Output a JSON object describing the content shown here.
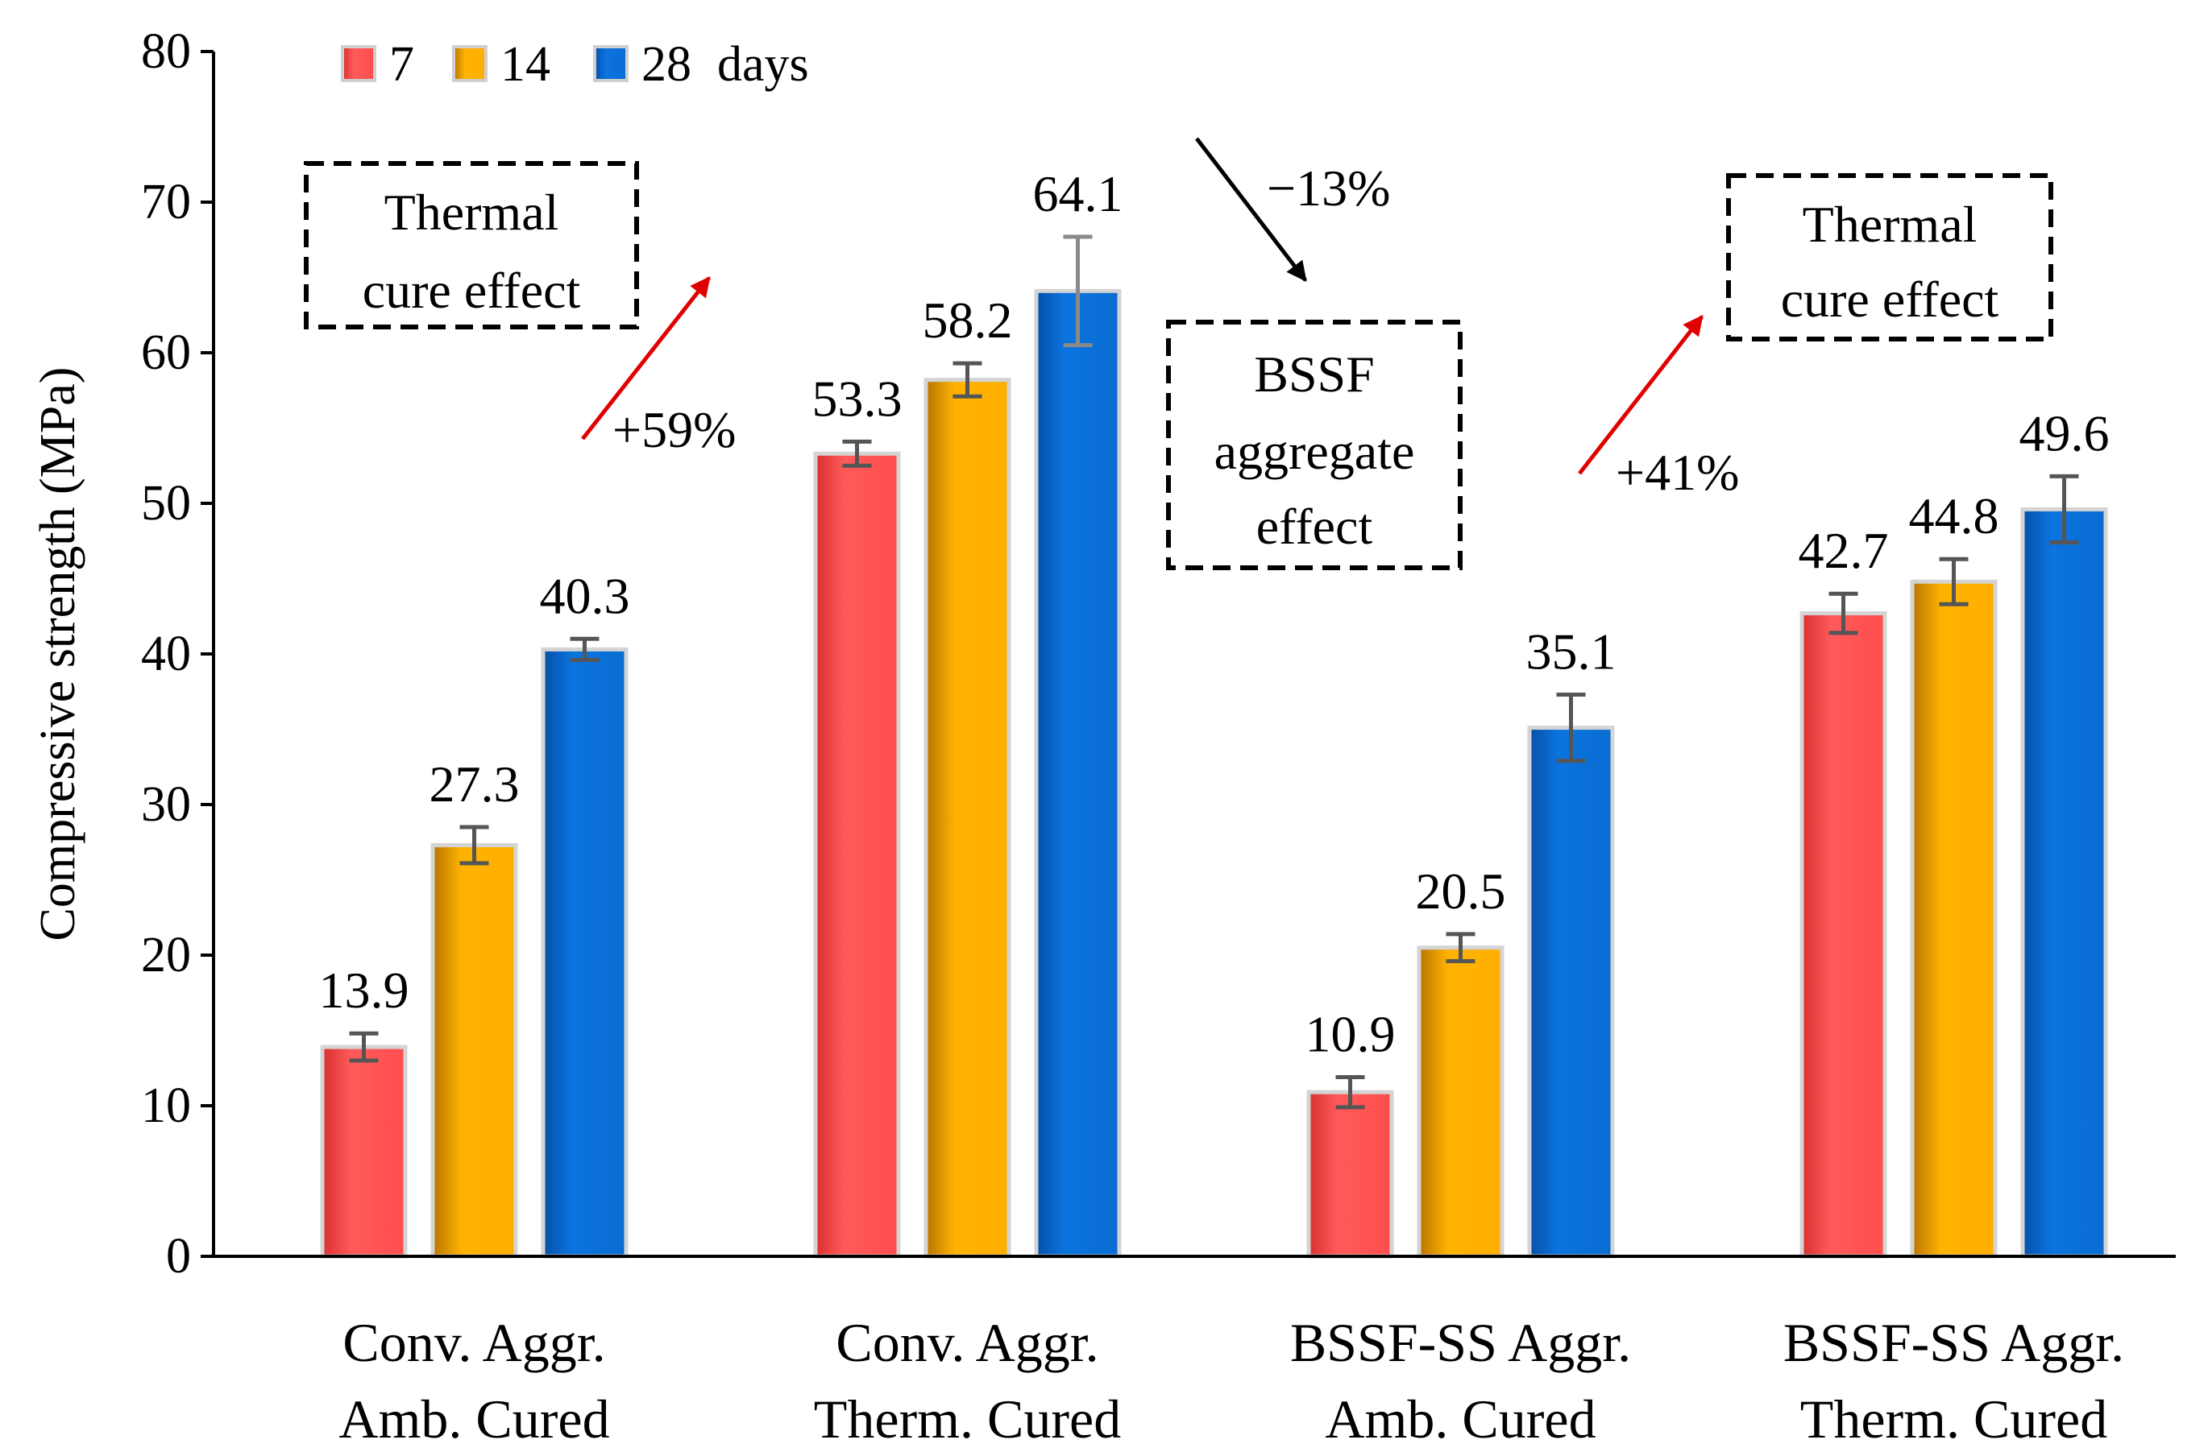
{
  "chart_data": {
    "type": "bar",
    "title": "",
    "xlabel": "",
    "ylabel": "Compressive strength (MPa)",
    "ylim": [
      0,
      80
    ],
    "yticks": [
      0,
      10,
      20,
      30,
      40,
      50,
      60,
      70,
      80
    ],
    "grid": false,
    "legend_position": "top-left",
    "legend_suffix": "days",
    "categories": [
      [
        "Conv. Aggr.",
        "Amb. Cured"
      ],
      [
        "Conv. Aggr.",
        "Therm. Cured"
      ],
      [
        "BSSF-SS Aggr.",
        "Amb. Cured"
      ],
      [
        "BSSF-SS Aggr.",
        "Therm. Cured"
      ]
    ],
    "series": [
      {
        "name": "7",
        "color": "#ff4d4d",
        "values": [
          13.9,
          53.3,
          10.9,
          42.7
        ],
        "errors": [
          0.9,
          0.8,
          1.0,
          1.3
        ]
      },
      {
        "name": "14",
        "color": "#ffb000",
        "values": [
          27.3,
          58.2,
          20.5,
          44.8
        ],
        "errors": [
          1.2,
          1.1,
          0.9,
          1.5
        ]
      },
      {
        "name": "28",
        "color": "#0a6fd6",
        "values": [
          40.3,
          64.1,
          35.1,
          49.6
        ],
        "errors": [
          0.7,
          3.6,
          2.2,
          2.2
        ]
      }
    ],
    "data_labels": [
      [
        "13.9",
        "53.3",
        "10.9",
        "42.7"
      ],
      [
        "27.3",
        "58.2",
        "20.5",
        "44.8"
      ],
      [
        "40.3",
        "64.1",
        "35.1",
        "49.6"
      ]
    ],
    "annotations": {
      "thermal_left": {
        "lines": [
          "Thermal",
          "cure effect"
        ],
        "percent": "+59%",
        "arrow_color": "#e00000"
      },
      "bssf_mid": {
        "lines": [
          "BSSF",
          "aggregate",
          "effect"
        ],
        "percent": "−13%",
        "arrow_color": "#000000"
      },
      "thermal_right": {
        "lines": [
          "Thermal",
          "cure effect"
        ],
        "percent": "+41%",
        "arrow_color": "#e00000"
      }
    }
  }
}
